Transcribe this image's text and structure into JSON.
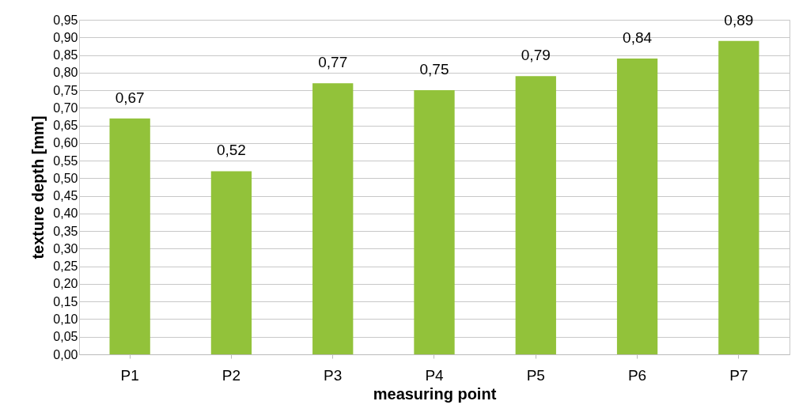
{
  "chart_data": {
    "type": "bar",
    "xlabel": "measuring point",
    "ylabel": "texture depth [mm]",
    "categories": [
      "P1",
      "P2",
      "P3",
      "P4",
      "P5",
      "P6",
      "P7"
    ],
    "values": [
      0.67,
      0.52,
      0.77,
      0.75,
      0.79,
      0.84,
      0.89
    ],
    "value_labels": [
      "0,67",
      "0,52",
      "0,77",
      "0,75",
      "0,79",
      "0,84",
      "0,89"
    ],
    "color": "#92c23a",
    "ylim": [
      0,
      0.95
    ],
    "yticks": [
      {
        "value": 0,
        "label": "0,00"
      },
      {
        "value": 0.05,
        "label": "0,05"
      },
      {
        "value": 0.1,
        "label": "0,10"
      },
      {
        "value": 0.15,
        "label": "0,15"
      },
      {
        "value": 0.2,
        "label": "0,20"
      },
      {
        "value": 0.25,
        "label": "0,25"
      },
      {
        "value": 0.3,
        "label": "0,30"
      },
      {
        "value": 0.35,
        "label": "0,35"
      },
      {
        "value": 0.4,
        "label": "0,40"
      },
      {
        "value": 0.45,
        "label": "0,45"
      },
      {
        "value": 0.5,
        "label": "0,50"
      },
      {
        "value": 0.55,
        "label": "0,55"
      },
      {
        "value": 0.6,
        "label": "0,60"
      },
      {
        "value": 0.65,
        "label": "0,65"
      },
      {
        "value": 0.7,
        "label": "0,70"
      },
      {
        "value": 0.75,
        "label": "0,75"
      },
      {
        "value": 0.8,
        "label": "0,80"
      },
      {
        "value": 0.85,
        "label": "0,85"
      },
      {
        "value": 0.9,
        "label": "0,90"
      },
      {
        "value": 0.95,
        "label": "0,95"
      }
    ],
    "grid": "y"
  }
}
